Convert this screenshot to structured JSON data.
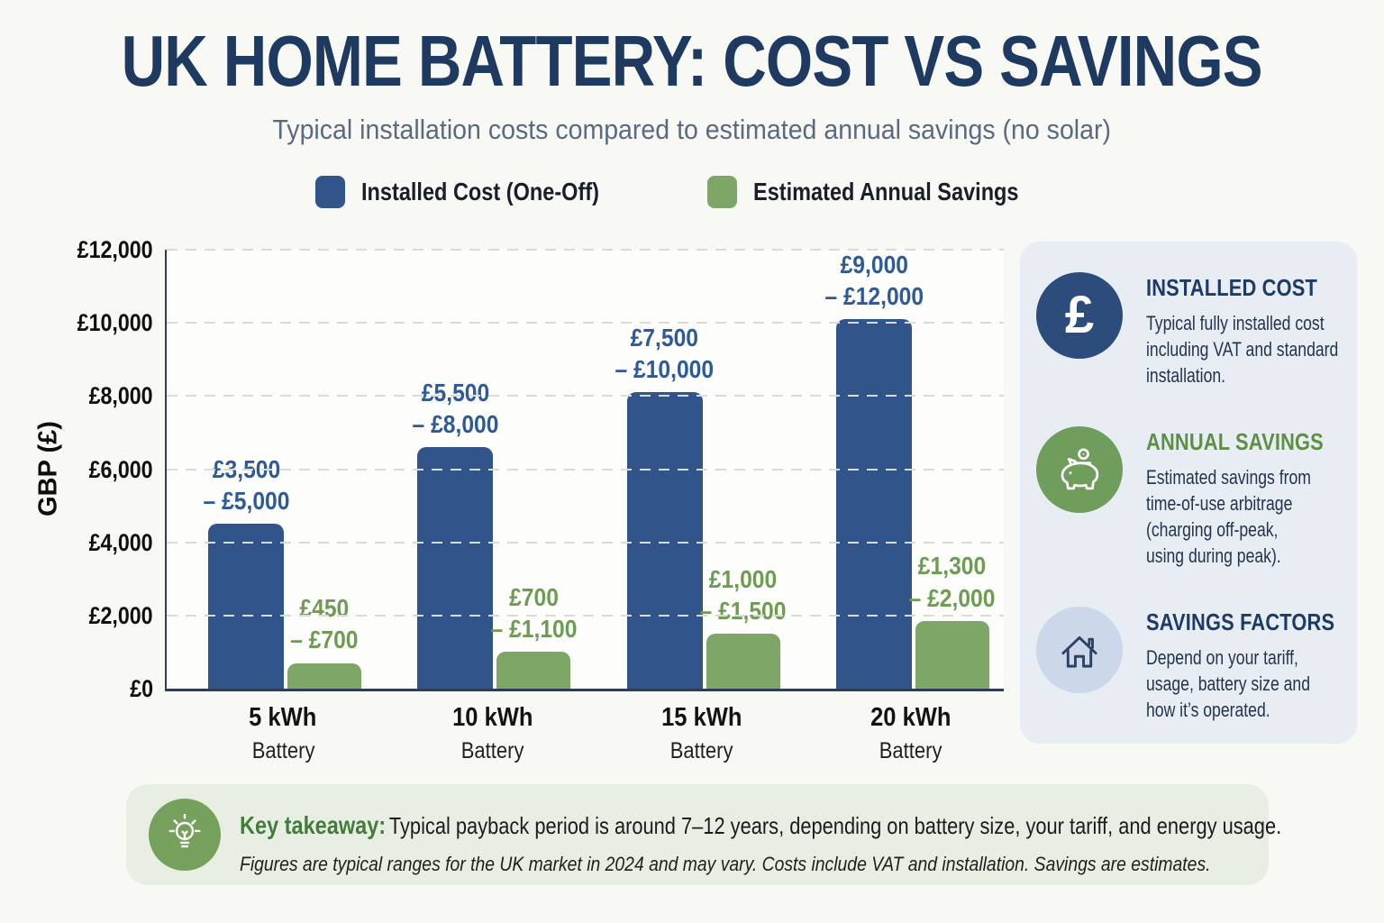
{
  "page": {
    "title": "UK HOME BATTERY: COST VS SAVINGS",
    "subtitle": "Typical installation costs compared to estimated annual savings (no solar)"
  },
  "legend": [
    {
      "label": "Installed Cost (One-Off)",
      "color": "#31558a"
    },
    {
      "label": "Estimated Annual Savings",
      "color": "#7da667"
    }
  ],
  "chart_data": {
    "type": "bar",
    "title": "UK Home Battery: Cost vs Savings",
    "ylabel": "GBP (£)",
    "ylim": [
      0,
      12000
    ],
    "ytick_labels": [
      "£12,000",
      "£10,000",
      "£8,000",
      "£6,000",
      "£4,000",
      "£2,000",
      "£0"
    ],
    "grid": "horizontal-dashed",
    "legend_position": "top",
    "categories": [
      "5 kWh",
      "10 kWh",
      "15 kWh",
      "20 kWh"
    ],
    "category_sublabel": "Battery",
    "series": [
      {
        "name": "Installed Cost (One-Off)",
        "color": "#31558a",
        "label_color": "#2e5b97",
        "ranges_gbp": [
          [
            3500,
            5000
          ],
          [
            5500,
            8000
          ],
          [
            7500,
            10000
          ],
          [
            9000,
            12000
          ]
        ],
        "plotted_values": [
          4500,
          6600,
          8100,
          10100
        ],
        "range_labels": [
          [
            "£3,500",
            "– £5,000"
          ],
          [
            "£5,500",
            "– £8,000"
          ],
          [
            "£7,500",
            "– £10,000"
          ],
          [
            "£9,000",
            "– £12,000"
          ]
        ]
      },
      {
        "name": "Estimated Annual Savings",
        "color": "#7da667",
        "label_color": "#6f9c55",
        "ranges_gbp": [
          [
            450,
            700
          ],
          [
            700,
            1100
          ],
          [
            1000,
            1500
          ],
          [
            1300,
            2000
          ]
        ],
        "plotted_values": [
          700,
          1000,
          1500,
          1850
        ],
        "range_labels": [
          [
            "£450",
            "– £700"
          ],
          [
            "£700",
            "– £1,100"
          ],
          [
            "£1,000",
            "– £1,500"
          ],
          [
            "£1,300",
            "– £2,000"
          ]
        ]
      }
    ]
  },
  "info_panel": {
    "items": [
      {
        "icon": "pound-sterling",
        "title": "INSTALLED COST",
        "title_color": "#1d3b64",
        "text": "Typical fully installed cost\nincluding VAT and standard\ninstallation."
      },
      {
        "icon": "piggy-bank",
        "title": "ANNUAL SAVINGS",
        "title_color": "#5d8f44",
        "text": "Estimated savings from\ntime-of-use arbitrage\n(charging off-peak,\nusing during peak)."
      },
      {
        "icon": "house",
        "title": "SAVINGS FACTORS",
        "title_color": "#1d3b64",
        "text": "Depend on your tariff,\nusage, battery size and\nhow it’s operated."
      }
    ]
  },
  "takeaway": {
    "icon": "lightbulb",
    "label": "Key takeaway:",
    "text": "Typical payback period is around 7–12 years, depending on battery size, your tariff, and energy usage.",
    "footnote": "Figures are typical ranges for the UK market in 2024 and may vary. Costs include VAT and installation. Savings are estimates."
  },
  "colors": {
    "background": "#f8f9f5",
    "title": "#1e3a60",
    "subtitle": "#5a6a80",
    "axis": "#2e3d52",
    "gridline": "#d9dbd5",
    "panel_background": "#e8edf4",
    "panel_body_text": "#24344e",
    "pound_circle": "#2c4d7b",
    "piggy_circle": "#6f9d5c",
    "house_circle": "#ccd7e9",
    "takeaway_background": "#e9eee4",
    "takeaway_circle": "#76a15c",
    "takeaway_label": "#447c3c"
  }
}
